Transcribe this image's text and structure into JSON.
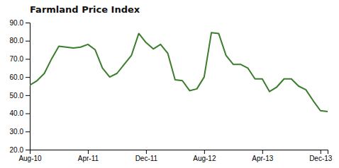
{
  "chart_data": {
    "type": "line",
    "title": "Farmland Price Index",
    "categories": [
      "Aug-10",
      null,
      null,
      null,
      null,
      null,
      null,
      null,
      "Apr-11",
      null,
      null,
      null,
      null,
      null,
      null,
      null,
      "Dec-11",
      null,
      null,
      null,
      null,
      null,
      null,
      null,
      "Aug-12",
      null,
      null,
      null,
      null,
      null,
      null,
      null,
      "Apr-13",
      null,
      null,
      null,
      null,
      null,
      null,
      null,
      "Dec-13",
      null
    ],
    "values": [
      55.5,
      58.0,
      62.0,
      70.0,
      77.0,
      76.5,
      76.0,
      76.5,
      78.0,
      75.0,
      65.0,
      60.0,
      62.0,
      67.0,
      72.0,
      84.0,
      79.0,
      75.5,
      78.0,
      73.0,
      58.5,
      58.0,
      52.5,
      53.5,
      60.0,
      84.5,
      84.0,
      72.0,
      67.0,
      67.0,
      65.0,
      59.0,
      59.0,
      52.0,
      54.5,
      59.0,
      59.0,
      55.0,
      53.0,
      47.0,
      41.5,
      41.0
    ],
    "color": "#3a7d2c",
    "ylim": [
      20.0,
      90.0
    ],
    "yticks": [
      {
        "value": 20.0,
        "label": "20.0"
      },
      {
        "value": 30.0,
        "label": "30.0"
      },
      {
        "value": 40.0,
        "label": "40.0"
      },
      {
        "value": 50.0,
        "label": "50.0"
      },
      {
        "value": 60.0,
        "label": "60.0"
      },
      {
        "value": 70.0,
        "label": "70.0"
      },
      {
        "value": 80.0,
        "label": "80.0"
      },
      {
        "value": 90.0,
        "label": "90.0"
      }
    ],
    "grid": false
  }
}
